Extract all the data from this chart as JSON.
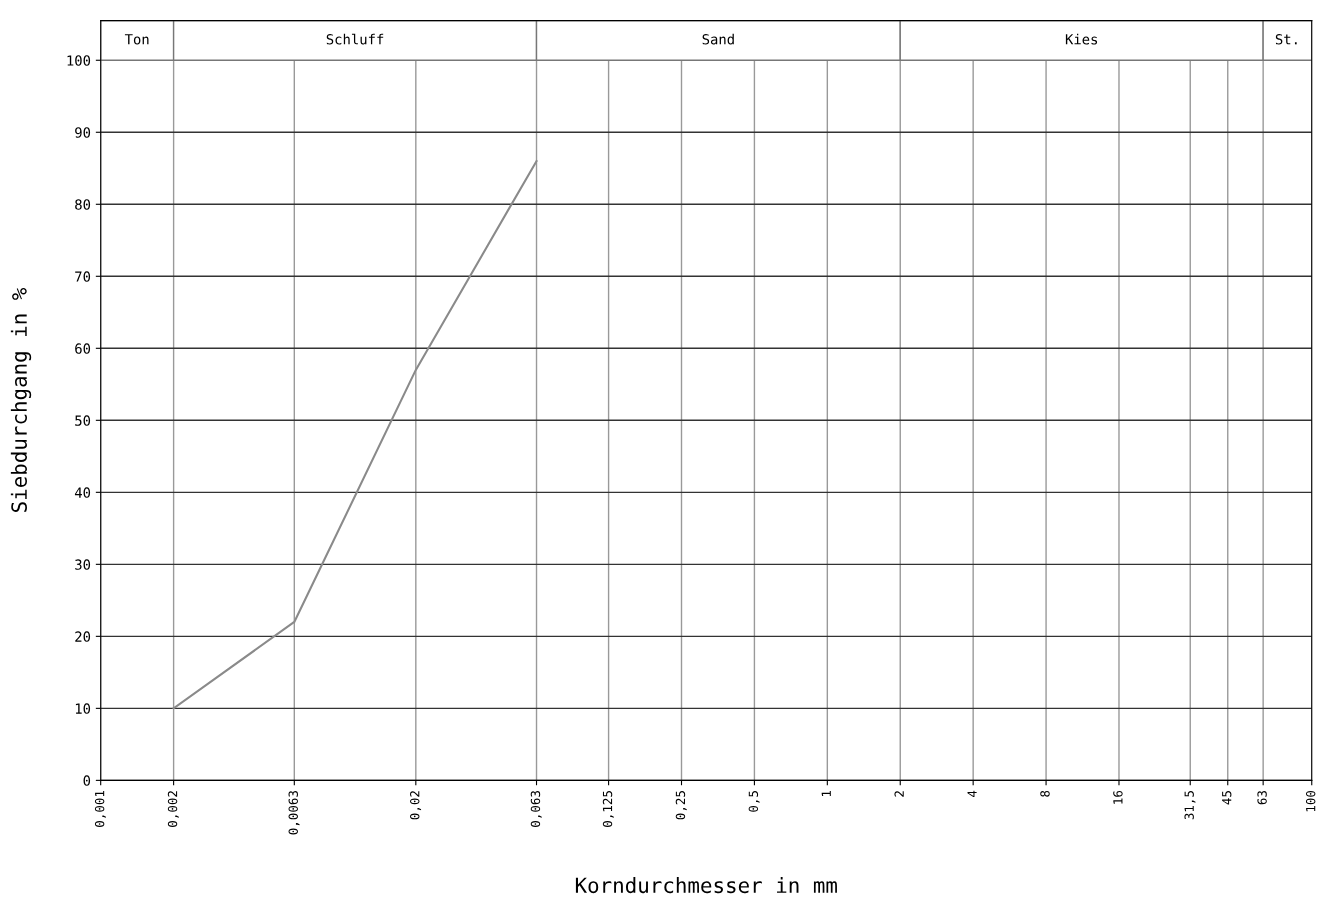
{
  "chart_data": {
    "type": "line",
    "xlabel": "Korndurchmesser in mm",
    "ylabel": "Siebdurchgang in %",
    "log": "x",
    "xlim": [
      0.001,
      100
    ],
    "ylim": [
      0,
      105.5
    ],
    "xticks": [
      {
        "value": 0.001,
        "label": "0,001"
      },
      {
        "value": 0.002,
        "label": "0,002"
      },
      {
        "value": 0.0063,
        "label": "0,0063"
      },
      {
        "value": 0.02,
        "label": "0,02"
      },
      {
        "value": 0.063,
        "label": "0,063"
      },
      {
        "value": 0.125,
        "label": "0,125"
      },
      {
        "value": 0.25,
        "label": "0,25"
      },
      {
        "value": 0.5,
        "label": "0,5"
      },
      1,
      2,
      4,
      8,
      16,
      {
        "value": 31.5,
        "label": "31,5"
      },
      45,
      63,
      100
    ],
    "yticks": [
      0,
      10,
      20,
      30,
      40,
      50,
      60,
      70,
      80,
      90,
      100
    ],
    "grid": true,
    "marker": "none",
    "line_style": "solid",
    "x": [
      0.002,
      0.0063,
      0.02,
      0.063
    ],
    "series": [
      {
        "color": "#8a8a8a",
        "values": [
          10,
          22,
          57,
          86
        ]
      }
    ],
    "bands": [
      {
        "axis": "x",
        "from": 0.001,
        "to": 0.002,
        "label": "Ton",
        "color": "#ffffff"
      },
      {
        "axis": "x",
        "from": 0.002,
        "to": 0.063,
        "label": "Schluff",
        "color": "#ffffff"
      },
      {
        "axis": "x",
        "from": 0.063,
        "to": 2,
        "label": "Sand",
        "color": "#ffffff"
      },
      {
        "axis": "x",
        "from": 2,
        "to": 63,
        "label": "Kies",
        "color": "#ffffff"
      },
      {
        "axis": "x",
        "from": 63,
        "to": 100,
        "label": "St.",
        "color": "#ffffff"
      }
    ]
  }
}
